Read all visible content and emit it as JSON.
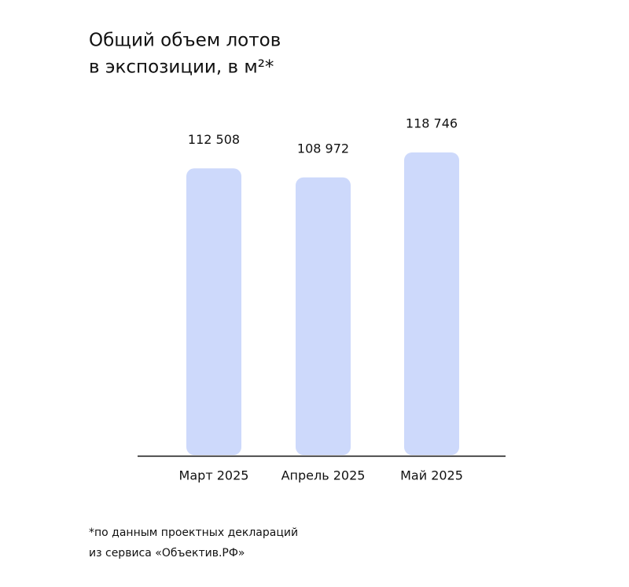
{
  "chart_data": {
    "type": "bar",
    "title": [
      "Общий объем лотов",
      "в экспозиции, в м²*"
    ],
    "categories": [
      "Март 2025",
      "Апрель 2025",
      "Май 2025"
    ],
    "values": [
      112508,
      108972,
      118746
    ],
    "value_labels": [
      "112 508",
      "108 972",
      "118 746"
    ],
    "color": "#cdd9fb",
    "note": [
      "*по данным проектных деклараций",
      "из сервиса «Объектив.РФ»"
    ]
  }
}
